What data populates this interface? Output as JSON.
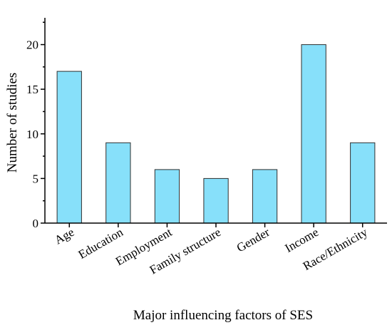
{
  "chart_data": {
    "type": "bar",
    "categories": [
      "Age",
      "Education",
      "Employment",
      "Family structure",
      "Gender",
      "Income",
      "Race/Ethnicity"
    ],
    "values": [
      17,
      9,
      6,
      5,
      6,
      20,
      9
    ],
    "xlabel": "Major influencing factors of SES",
    "ylabel": "Number of studies",
    "ylim": [
      0,
      23
    ],
    "yticks": [
      0,
      5,
      10,
      15,
      20
    ],
    "bar_color": "#87e0fa",
    "grid": false,
    "legend": "none"
  }
}
